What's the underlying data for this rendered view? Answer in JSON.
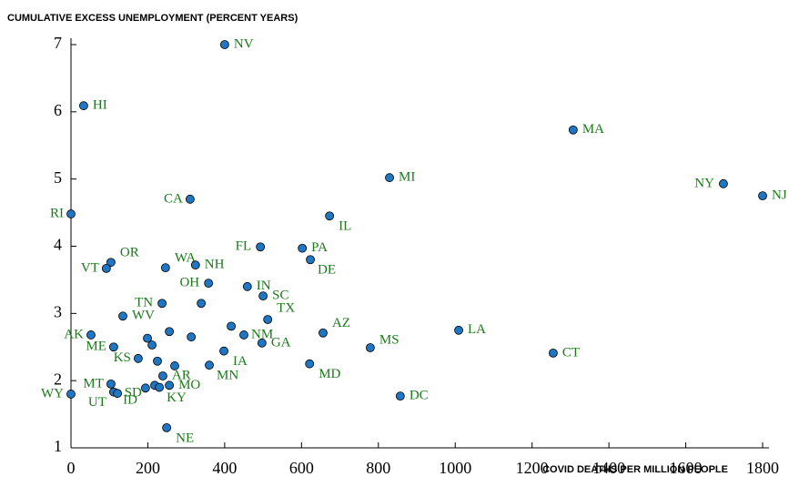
{
  "chart_data": {
    "type": "scatter",
    "y_label": "CUMULATIVE EXCESS UNEMPLOYMENT (PERCENT YEARS)",
    "x_label": "COVID DEATHS PER MILLION PEOPLE",
    "color": "#1f77c4",
    "label_color": "#1a7a1a",
    "xlim": [
      0,
      1800
    ],
    "xticks": [
      0,
      200,
      400,
      600,
      800,
      1000,
      1200,
      1400,
      1600,
      1800
    ],
    "ylim": [
      1,
      7
    ],
    "yticks": [
      1,
      2,
      3,
      4,
      5,
      6,
      7
    ],
    "labels": [
      "NV",
      "HI",
      "MA",
      "MI",
      "NY",
      "NJ",
      "CA",
      "RI",
      "IL",
      "FL",
      "PA",
      "DE",
      "OR",
      "VT",
      "WA",
      "NH",
      "OH",
      "IN",
      "SC",
      "TN",
      null,
      "TX",
      "WV",
      "AZ",
      "LA",
      "AK",
      null,
      null,
      "NM",
      null,
      "GA",
      "ME",
      null,
      null,
      "MS",
      "CT",
      "IA",
      "KS",
      null,
      "MN",
      null,
      "MD",
      "AR",
      "MT",
      "SD",
      "MO",
      null,
      "UT",
      "ID",
      "KY",
      "WY",
      "DC",
      "NE"
    ],
    "x": [
      400,
      33,
      1307,
      829,
      1698,
      1800,
      310,
      0,
      673,
      493,
      602,
      623,
      104,
      92,
      246,
      324,
      358,
      459,
      500,
      237,
      339,
      512,
      135,
      656,
      1009,
      52,
      256,
      417,
      450,
      313,
      497,
      111,
      199,
      211,
      779,
      1255,
      398,
      175,
      225,
      360,
      270,
      621,
      239,
      104,
      194,
      256,
      218,
      111,
      121,
      230,
      0,
      857,
      249
    ],
    "y": [
      7.0,
      6.09,
      5.73,
      5.02,
      4.93,
      4.75,
      4.7,
      4.48,
      4.45,
      3.99,
      3.97,
      3.8,
      3.76,
      3.67,
      3.68,
      3.72,
      3.45,
      3.4,
      3.26,
      3.15,
      3.15,
      2.91,
      2.96,
      2.71,
      2.75,
      2.68,
      2.73,
      2.81,
      2.68,
      2.65,
      2.56,
      2.5,
      2.63,
      2.53,
      2.49,
      2.41,
      2.44,
      2.33,
      2.29,
      2.23,
      2.22,
      2.25,
      2.07,
      1.95,
      1.89,
      1.93,
      1.93,
      1.83,
      1.81,
      1.9,
      1.8,
      1.77,
      1.3
    ]
  }
}
